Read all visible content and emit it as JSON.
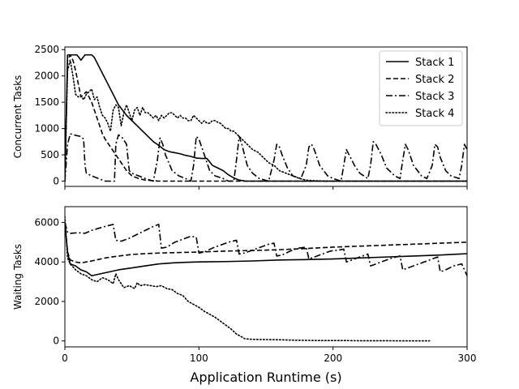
{
  "chart_data": [
    {
      "type": "line",
      "ylabel": "Concurrent Tasks",
      "xlim": [
        0,
        300
      ],
      "ylim": [
        -100,
        2550
      ],
      "xticks": [
        0,
        100,
        200,
        300
      ],
      "yticks": [
        0,
        500,
        1000,
        1500,
        2000,
        2500
      ],
      "show_xtick_labels": false,
      "legend_position": "top-right",
      "series": [
        {
          "name": "Stack 1",
          "style": "solid",
          "x": [
            0,
            2,
            4,
            6,
            9,
            12,
            15,
            17,
            20,
            22,
            25,
            28,
            31,
            34,
            37,
            40,
            43,
            46,
            50,
            54,
            58,
            62,
            66,
            70,
            74,
            78,
            82,
            86,
            90,
            94,
            98,
            102,
            106,
            110,
            114,
            118,
            122,
            126,
            130,
            135,
            140,
            150,
            200,
            250,
            300
          ],
          "y": [
            0,
            2400,
            2400,
            2400,
            2400,
            2300,
            2400,
            2400,
            2400,
            2350,
            2200,
            2050,
            1900,
            1750,
            1600,
            1450,
            1350,
            1250,
            1150,
            1050,
            950,
            850,
            750,
            680,
            600,
            560,
            540,
            520,
            490,
            470,
            440,
            430,
            430,
            300,
            250,
            200,
            120,
            60,
            20,
            0,
            0,
            0,
            0,
            0,
            0
          ]
        },
        {
          "name": "Stack 2",
          "style": "dashed",
          "x": [
            0,
            2,
            4,
            6,
            8,
            10,
            12,
            14,
            16,
            18,
            20,
            22,
            24,
            26,
            28,
            30,
            34,
            38,
            42,
            46,
            50,
            55,
            60,
            70,
            80,
            90,
            100,
            150,
            200,
            250,
            300
          ],
          "y": [
            0,
            2300,
            2400,
            2300,
            2100,
            1850,
            1600,
            1650,
            1700,
            1600,
            1500,
            1350,
            1200,
            1050,
            900,
            800,
            650,
            500,
            350,
            200,
            100,
            50,
            20,
            0,
            0,
            0,
            0,
            0,
            0,
            0,
            0
          ]
        },
        {
          "name": "Stack 3",
          "style": "dashdot",
          "x": [
            0,
            2,
            4,
            8,
            12,
            14,
            15,
            16,
            20,
            25,
            30,
            35,
            37,
            38,
            40,
            43,
            46,
            48,
            50,
            55,
            60,
            66,
            69,
            71,
            73,
            75,
            80,
            85,
            90,
            94,
            96,
            98,
            100,
            102,
            104,
            108,
            112,
            118,
            122,
            126,
            128,
            130,
            132,
            136,
            140,
            145,
            152,
            156,
            158,
            160,
            162,
            166,
            170,
            176,
            180,
            182,
            184,
            186,
            190,
            196,
            200,
            206,
            208,
            210,
            212,
            216,
            220,
            226,
            228,
            230,
            232,
            236,
            240,
            246,
            250,
            252,
            254,
            256,
            260,
            266,
            270,
            274,
            276,
            278,
            280,
            284,
            288,
            294,
            296,
            298,
            300
          ],
          "y": [
            0,
            700,
            900,
            870,
            850,
            800,
            300,
            150,
            100,
            50,
            0,
            0,
            0,
            700,
            880,
            820,
            700,
            200,
            150,
            100,
            50,
            0,
            400,
            820,
            700,
            500,
            200,
            100,
            50,
            0,
            300,
            850,
            800,
            650,
            500,
            200,
            100,
            50,
            0,
            0,
            400,
            850,
            700,
            300,
            150,
            50,
            0,
            400,
            700,
            650,
            500,
            250,
            100,
            50,
            300,
            650,
            700,
            600,
            300,
            100,
            50,
            0,
            300,
            600,
            500,
            300,
            150,
            50,
            300,
            750,
            700,
            500,
            250,
            100,
            50,
            400,
            700,
            600,
            300,
            100,
            50,
            300,
            700,
            650,
            450,
            200,
            100,
            50,
            300,
            700,
            600
          ]
        },
        {
          "name": "Stack 4",
          "style": "dotted",
          "x": [
            0,
            2,
            4,
            6,
            8,
            10,
            12,
            14,
            16,
            18,
            20,
            22,
            24,
            26,
            28,
            30,
            32,
            34,
            36,
            38,
            40,
            42,
            44,
            46,
            48,
            50,
            52,
            54,
            56,
            58,
            60,
            62,
            64,
            66,
            68,
            70,
            72,
            74,
            76,
            78,
            80,
            82,
            84,
            86,
            88,
            90,
            92,
            94,
            96,
            98,
            100,
            102,
            104,
            106,
            108,
            110,
            112,
            114,
            116,
            118,
            120,
            122,
            124,
            126,
            128,
            130,
            132,
            134,
            136,
            140,
            144,
            148,
            152,
            156,
            160,
            165,
            170,
            175,
            180,
            185,
            190,
            195,
            200,
            205,
            210,
            215,
            220,
            230,
            240,
            250,
            260,
            270,
            280,
            290,
            300
          ],
          "y": [
            0,
            2100,
            2300,
            2000,
            1650,
            1600,
            1620,
            1550,
            1650,
            1700,
            1750,
            1550,
            1600,
            1400,
            1250,
            1200,
            1100,
            950,
            1350,
            1450,
            1400,
            1050,
            1300,
            1450,
            1300,
            1150,
            1350,
            1400,
            1250,
            1400,
            1300,
            1300,
            1250,
            1200,
            1250,
            1150,
            1250,
            1200,
            1250,
            1300,
            1300,
            1250,
            1200,
            1250,
            1200,
            1200,
            1150,
            1150,
            1250,
            1200,
            1150,
            1100,
            1150,
            1100,
            1100,
            1150,
            1150,
            1120,
            1100,
            1050,
            1000,
            1000,
            950,
            950,
            900,
            850,
            800,
            750,
            700,
            600,
            550,
            450,
            350,
            300,
            200,
            150,
            100,
            50,
            20,
            10,
            5,
            0,
            0,
            0,
            0,
            0,
            0,
            0,
            0,
            0,
            0,
            0,
            0,
            0,
            0
          ]
        }
      ]
    },
    {
      "type": "line",
      "ylabel": "Waiting Tasks",
      "xlabel": "Application Runtime (s)",
      "xlim": [
        0,
        300
      ],
      "ylim": [
        -300,
        6800
      ],
      "xticks": [
        0,
        100,
        200,
        300
      ],
      "yticks": [
        0,
        2000,
        4000,
        6000
      ],
      "show_xtick_labels": true,
      "series": [
        {
          "name": "Stack 1",
          "style": "solid",
          "x": [
            0,
            2,
            4,
            8,
            12,
            16,
            20,
            30,
            40,
            50,
            60,
            70,
            80,
            90,
            100,
            120,
            140,
            160,
            180,
            200,
            220,
            240,
            260,
            280,
            295,
            300
          ],
          "y": [
            6000,
            4500,
            3900,
            3800,
            3600,
            3500,
            3300,
            3450,
            3600,
            3700,
            3800,
            3900,
            3950,
            3980,
            4000,
            4020,
            4050,
            4100,
            4120,
            4150,
            4200,
            4250,
            4300,
            4350,
            4400,
            4420
          ]
        },
        {
          "name": "Stack 2",
          "style": "dashed",
          "x": [
            0,
            2,
            4,
            8,
            12,
            20,
            30,
            40,
            50,
            60,
            70,
            80,
            100,
            120,
            140,
            160,
            180,
            200,
            220,
            240,
            260,
            280,
            300
          ],
          "y": [
            6000,
            4500,
            4100,
            4000,
            3950,
            4050,
            4200,
            4300,
            4380,
            4420,
            4450,
            4470,
            4500,
            4550,
            4580,
            4620,
            4680,
            4750,
            4800,
            4850,
            4900,
            4950,
            5000
          ]
        },
        {
          "name": "Stack 3",
          "style": "dashdot",
          "x": [
            0,
            2,
            4,
            10,
            15,
            20,
            25,
            30,
            36,
            38,
            42,
            48,
            54,
            60,
            66,
            70,
            72,
            76,
            82,
            88,
            94,
            98,
            100,
            104,
            110,
            116,
            122,
            128,
            130,
            134,
            140,
            146,
            152,
            156,
            158,
            162,
            168,
            174,
            180,
            182,
            186,
            192,
            198,
            204,
            208,
            210,
            214,
            220,
            226,
            228,
            232,
            238,
            244,
            250,
            252,
            256,
            262,
            268,
            274,
            278,
            280,
            284,
            290,
            296,
            300
          ],
          "y": [
            6000,
            5500,
            5450,
            5480,
            5450,
            5600,
            5700,
            5800,
            5900,
            5100,
            5050,
            5200,
            5400,
            5600,
            5800,
            5900,
            4700,
            4750,
            5000,
            5150,
            5300,
            5250,
            4450,
            4500,
            4700,
            4850,
            5000,
            5100,
            4400,
            4450,
            4600,
            4750,
            4900,
            4950,
            4300,
            4350,
            4550,
            4700,
            4750,
            4150,
            4250,
            4400,
            4550,
            4600,
            4650,
            4000,
            4100,
            4250,
            4400,
            3800,
            3900,
            4050,
            4200,
            4300,
            3600,
            3700,
            3850,
            4000,
            4150,
            4250,
            3500,
            3600,
            3800,
            3900,
            3300
          ]
        },
        {
          "name": "Stack 4",
          "style": "dotted",
          "x": [
            0,
            2,
            4,
            8,
            12,
            16,
            20,
            24,
            28,
            32,
            36,
            38,
            40,
            44,
            48,
            52,
            54,
            56,
            60,
            64,
            68,
            72,
            76,
            80,
            84,
            88,
            92,
            96,
            100,
            104,
            108,
            112,
            116,
            120,
            124,
            128,
            132,
            134,
            136,
            140,
            150,
            160,
            170,
            180,
            190,
            200,
            210,
            220,
            230,
            240,
            250,
            260,
            270,
            272
          ],
          "y": [
            6300,
            4200,
            3900,
            3600,
            3400,
            3300,
            3100,
            3000,
            3200,
            3100,
            2900,
            3400,
            3100,
            2700,
            2800,
            2650,
            2950,
            2800,
            2850,
            2800,
            2750,
            2800,
            2650,
            2600,
            2400,
            2300,
            2000,
            1850,
            1700,
            1500,
            1350,
            1200,
            1000,
            800,
            600,
            350,
            200,
            120,
            100,
            80,
            70,
            60,
            40,
            30,
            20,
            20,
            20,
            10,
            10,
            10,
            5,
            5,
            5,
            5
          ]
        }
      ]
    }
  ]
}
